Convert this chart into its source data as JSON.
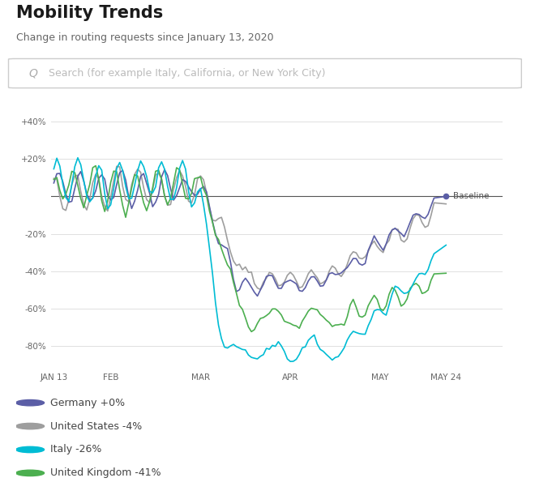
{
  "title": "Mobility Trends",
  "subtitle": "Change in routing requests since January 13, 2020",
  "search_placeholder": "Search (for example Italy, California, or New York City)",
  "baseline_label": "Baseline",
  "y_ticks": [
    40,
    20,
    0,
    -20,
    -40,
    -60,
    -80
  ],
  "y_labels": [
    "+40%",
    "+20%",
    "",
    "-20%",
    "-40%",
    "-60%",
    "-80%"
  ],
  "x_tick_labels": [
    "JAN 13",
    "FEB",
    "MAR",
    "APR",
    "MAY",
    "MAY 24"
  ],
  "x_tick_positions": [
    0,
    19,
    49,
    79,
    109,
    131
  ],
  "legend": [
    {
      "label": "Germany +0%",
      "color": "#5B5EA6"
    },
    {
      "label": "United States -4%",
      "color": "#9E9E9E"
    },
    {
      "label": "Italy -26%",
      "color": "#00BCD4"
    },
    {
      "label": "United Kingdom -41%",
      "color": "#4CAF50"
    }
  ],
  "colors": {
    "germany": "#5B5EA6",
    "us": "#9E9E9E",
    "italy": "#00BCD4",
    "uk": "#4CAF50",
    "background": "#FFFFFF",
    "grid": "#E0E0E0",
    "baseline": "#555555",
    "search_border": "#CCCCCC"
  },
  "fig_width": 6.6,
  "fig_height": 6.11,
  "dpi": 100
}
